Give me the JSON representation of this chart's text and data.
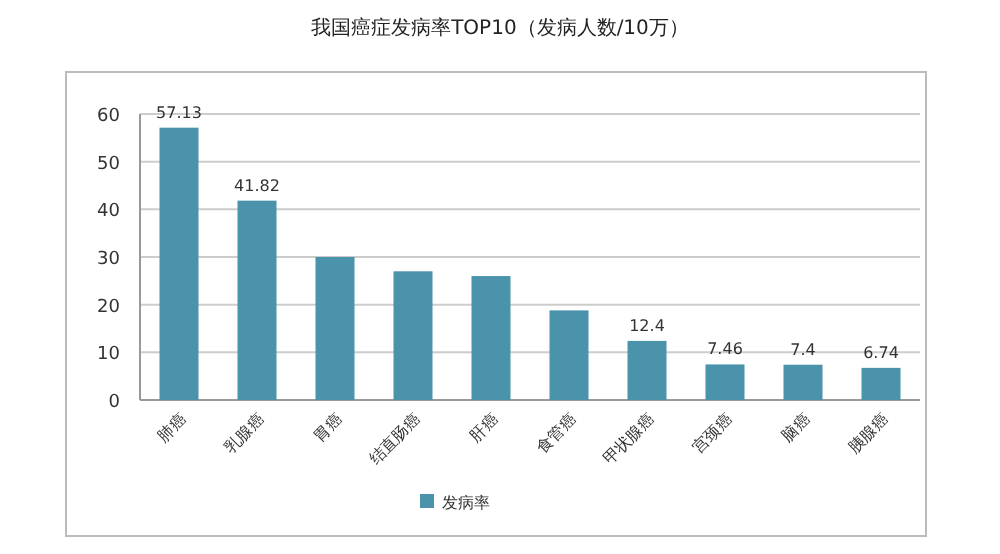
{
  "chart_data": {
    "type": "bar",
    "title": "我国癌症发病率TOP10（发病人数/10万）",
    "categories": [
      "肺癌",
      "乳腺癌",
      "胃癌",
      "结直肠癌",
      "肝癌",
      "食管癌",
      "甲状腺癌",
      "宫颈癌",
      "脑癌",
      "胰腺癌"
    ],
    "series": [
      {
        "name": "发病率",
        "color": "#4a93ab",
        "values": [
          57.13,
          41.82,
          30,
          27,
          26,
          18.8,
          12.4,
          7.46,
          7.4,
          6.74
        ],
        "value_labels": [
          "57.13",
          "41.82",
          null,
          null,
          null,
          null,
          "12.4",
          "7.46",
          "7.4",
          "6.74"
        ]
      }
    ],
    "ylim": [
      0,
      60
    ],
    "yticks": [
      0,
      10,
      20,
      30,
      40,
      50,
      60
    ],
    "grid": "y",
    "legend": "bottom"
  }
}
